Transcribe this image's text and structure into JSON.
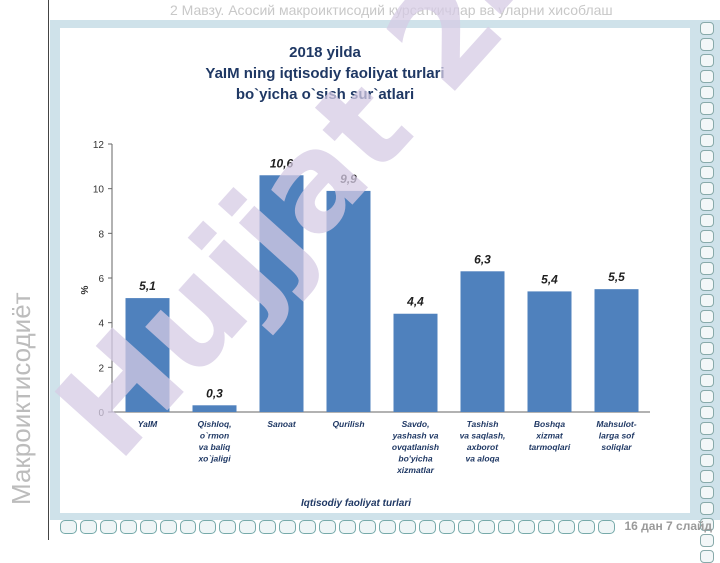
{
  "slide": {
    "header": "2 Мавзу. Асосий макроиктисодий курсаткичлар ва уларни хисоблаш",
    "side_title": "Макроиктисодиёт",
    "footer": "16 дан 7 слайд"
  },
  "watermark": {
    "text": "Hujjat 24"
  },
  "colors": {
    "bar": "#4f81bd",
    "plate": "#cfe2ea",
    "title": "#1f3864",
    "watermark": "#d5cbe4"
  },
  "chart_data": {
    "type": "bar",
    "title_lines": [
      "2018 yilda",
      "YaIM ning iqtisodiy faoliyat turlari",
      "bo`yicha o`sish sur`atlari"
    ],
    "xlabel": "Iqtisodiy faoliyat turlari",
    "ylabel": "%",
    "ylim": [
      0,
      12
    ],
    "yticks": [
      0,
      2,
      4,
      6,
      8,
      10,
      12
    ],
    "categories": [
      [
        "YaIM"
      ],
      [
        "Qishloq,",
        "o`rmon",
        "va baliq",
        "xo`jaligi"
      ],
      [
        "Sanoat"
      ],
      [
        "Qurilish"
      ],
      [
        "Savdo,",
        "yashash va",
        "ovqatlanish",
        "bo'yicha",
        "xizmatlar"
      ],
      [
        "Tashish",
        "va saqlash,",
        "axborot",
        "va aloqa"
      ],
      [
        "Boshqa",
        "xizmat",
        "tarmoqlari"
      ],
      [
        "Mahsulot-",
        "larga sof",
        "soliqlar"
      ]
    ],
    "values": [
      5.1,
      0.3,
      10.6,
      9.9,
      4.4,
      6.3,
      5.4,
      5.5
    ],
    "value_labels": [
      "5,1",
      "0,3",
      "10,6",
      "9,9",
      "4,4",
      "6,3",
      "5,4",
      "5,5"
    ],
    "grid": false
  }
}
